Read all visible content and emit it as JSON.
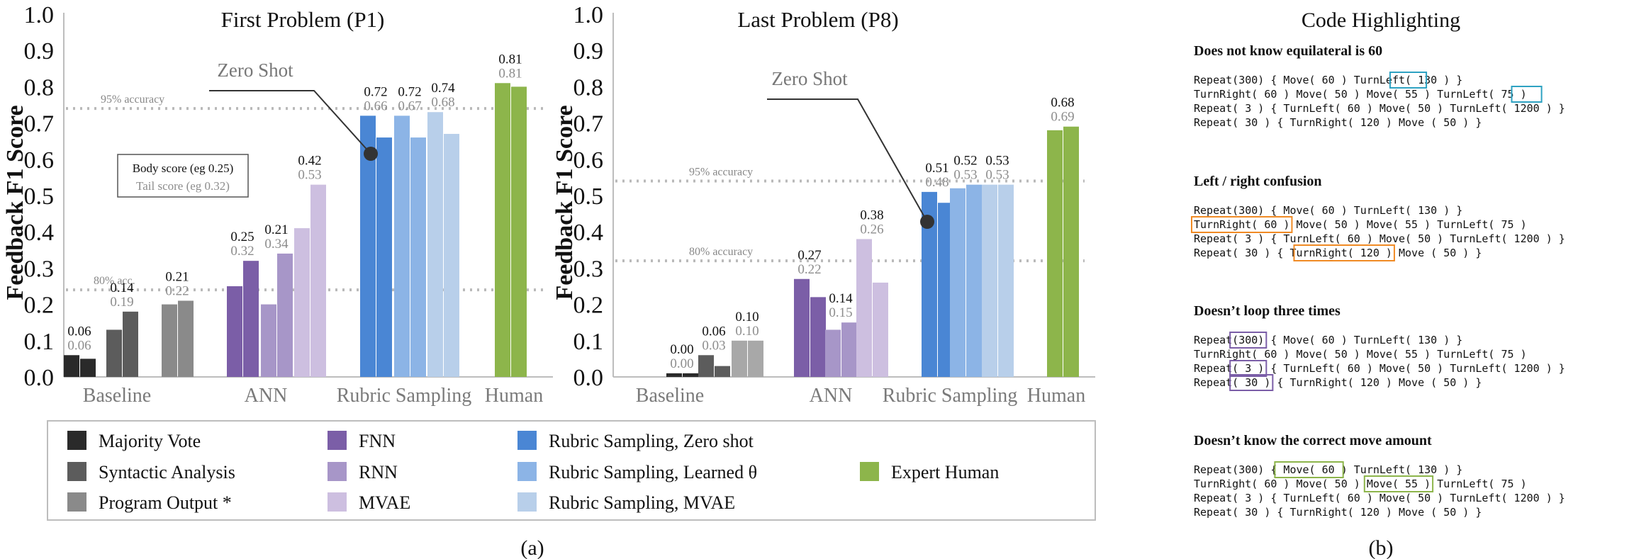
{
  "figure": {
    "caption_a": "(a)",
    "caption_b": "(b)",
    "ylabel": "Feedback F1 Score",
    "yticks": [
      "0.0",
      "0.1",
      "0.2",
      "0.3",
      "0.4",
      "0.5",
      "0.6",
      "0.7",
      "0.8",
      "0.9",
      "1.0"
    ],
    "groups": [
      "Baseline",
      "ANN",
      "Rubric Sampling",
      "Human"
    ],
    "annotation_zero_shot": "Zero Shot"
  },
  "colors": {
    "majority_vote": "#2a2a2a",
    "syntactic_analysis": "#5c5c5c",
    "program_output": "#8a8a8a",
    "fnn": "#7b5ea7",
    "rnn": "#a796c8",
    "mvae": "#cdbfe0",
    "rs_zero_shot": "#4a86d4",
    "rs_learned": "#8cb4e6",
    "rs_mvae": "#b8cfea",
    "expert_human": "#8db54b",
    "baseline_third_p8": "#a8a8a8"
  },
  "chart_data": [
    {
      "type": "bar",
      "title": "First Problem (P1)",
      "ylabel": "Feedback F1 Score",
      "ylim": [
        0,
        1.0
      ],
      "reference_lines": [
        {
          "label": "95% accuracy",
          "value": 0.74
        },
        {
          "label": "80% acc.",
          "value": 0.24
        }
      ],
      "inline_legend": {
        "body": "Body score (eg 0.25)",
        "tail": "Tail score (eg 0.32)"
      },
      "series": [
        {
          "name": "Majority Vote",
          "group": "Baseline",
          "body": 0.06,
          "tail": 0.05,
          "label_body": "0.06",
          "label_tail": "0.06"
        },
        {
          "name": "Syntactic Analysis",
          "group": "Baseline",
          "body": 0.13,
          "tail": 0.18,
          "label_body": "0.14",
          "label_tail": "0.19"
        },
        {
          "name": "Program Output *",
          "group": "Baseline",
          "body": 0.2,
          "tail": 0.21,
          "label_body": "0.21",
          "label_tail": "0.22"
        },
        {
          "name": "FNN",
          "group": "ANN",
          "body": 0.25,
          "tail": 0.32,
          "label_body": "0.25",
          "label_tail": "0.32"
        },
        {
          "name": "RNN",
          "group": "ANN",
          "body": 0.2,
          "tail": 0.34,
          "label_body": "0.21",
          "label_tail": "0.34"
        },
        {
          "name": "MVAE",
          "group": "ANN",
          "body": 0.41,
          "tail": 0.53,
          "label_body": "0.42",
          "label_tail": "0.53"
        },
        {
          "name": "Rubric Sampling, Zero shot",
          "group": "Rubric Sampling",
          "body": 0.72,
          "tail": 0.66,
          "label_body": "0.72",
          "label_tail": "0.66"
        },
        {
          "name": "Rubric Sampling, Learned θ",
          "group": "Rubric Sampling",
          "body": 0.72,
          "tail": 0.66,
          "label_body": "0.72",
          "label_tail": "0.67"
        },
        {
          "name": "Rubric Sampling, MVAE",
          "group": "Rubric Sampling",
          "body": 0.73,
          "tail": 0.67,
          "label_body": "0.74",
          "label_tail": "0.68"
        },
        {
          "name": "Expert Human",
          "group": "Human",
          "body": 0.81,
          "tail": 0.8,
          "label_body": "0.81",
          "label_tail": "0.81"
        }
      ]
    },
    {
      "type": "bar",
      "title": "Last Problem (P8)",
      "ylabel": "Feedback F1 Score",
      "ylim": [
        0,
        1.0
      ],
      "reference_lines": [
        {
          "label": "95% accuracy",
          "value": 0.54
        },
        {
          "label": "80% accuracy",
          "value": 0.32
        }
      ],
      "series": [
        {
          "name": "Majority Vote",
          "group": "Baseline",
          "body": 0.01,
          "tail": 0.01,
          "label_body": "0.00",
          "label_tail": "0.00"
        },
        {
          "name": "Syntactic Analysis",
          "group": "Baseline",
          "body": 0.06,
          "tail": 0.03,
          "label_body": "0.06",
          "label_tail": "0.03"
        },
        {
          "name": "Program Output *",
          "group": "Baseline",
          "body": 0.1,
          "tail": 0.1,
          "label_body": "0.10",
          "label_tail": "0.10"
        },
        {
          "name": "FNN",
          "group": "ANN",
          "body": 0.27,
          "tail": 0.22,
          "label_body": "0.27",
          "label_tail": "0.22"
        },
        {
          "name": "RNN",
          "group": "ANN",
          "body": 0.13,
          "tail": 0.15,
          "label_body": "0.14",
          "label_tail": "0.15"
        },
        {
          "name": "MVAE",
          "group": "ANN",
          "body": 0.38,
          "tail": 0.26,
          "label_body": "0.38",
          "label_tail": "0.26"
        },
        {
          "name": "Rubric Sampling, Zero shot",
          "group": "Rubric Sampling",
          "body": 0.51,
          "tail": 0.48,
          "label_body": "0.51",
          "label_tail": "0.48"
        },
        {
          "name": "Rubric Sampling, Learned θ",
          "group": "Rubric Sampling",
          "body": 0.52,
          "tail": 0.53,
          "label_body": "0.52",
          "label_tail": "0.53"
        },
        {
          "name": "Rubric Sampling, MVAE",
          "group": "Rubric Sampling",
          "body": 0.53,
          "tail": 0.53,
          "label_body": "0.53",
          "label_tail": "0.53"
        },
        {
          "name": "Expert Human",
          "group": "Human",
          "body": 0.68,
          "tail": 0.69,
          "label_body": "0.68",
          "label_tail": "0.69"
        }
      ]
    }
  ],
  "legend": {
    "items": [
      {
        "label": "Majority Vote",
        "color_key": "majority_vote"
      },
      {
        "label": "Syntactic Analysis",
        "color_key": "syntactic_analysis"
      },
      {
        "label": "Program Output *",
        "color_key": "program_output"
      },
      {
        "label": "FNN",
        "color_key": "fnn"
      },
      {
        "label": "RNN",
        "color_key": "rnn"
      },
      {
        "label": "MVAE",
        "color_key": "mvae"
      },
      {
        "label": "Rubric Sampling, Zero shot",
        "color_key": "rs_zero_shot"
      },
      {
        "label": "Rubric Sampling, Learned θ",
        "color_key": "rs_learned"
      },
      {
        "label": "Rubric Sampling, MVAE",
        "color_key": "rs_mvae"
      },
      {
        "label": "Expert Human",
        "color_key": "expert_human"
      }
    ]
  },
  "code": {
    "title": "Code Highlighting",
    "highlight_colors": [
      "#2ea2c2",
      "#f08a24",
      "#7b5ea7",
      "#8db54b"
    ],
    "sections": [
      {
        "heading": "Does not know equilateral is 60",
        "lines": [
          "Repeat(300) { Move( 60 ) TurnLeft( 130 ) }",
          "TurnRight( 60 ) Move( 50 ) Move( 55 ) TurnLeft( 75 )",
          "Repeat( 3 ) { TurnLeft( 60 ) Move( 50 ) TurnLeft( 1200 ) }",
          "Repeat( 30 ) { TurnRight( 120 ) Move ( 50 ) }"
        ]
      },
      {
        "heading": "Left / right confusion",
        "lines": [
          "Repeat(300) { Move( 60 ) TurnLeft( 130 ) }",
          "TurnRight( 60 ) Move( 50 ) Move( 55 ) TurnLeft( 75 )",
          "Repeat( 3 ) { TurnLeft( 60 ) Move( 50 ) TurnLeft( 1200 ) }",
          "Repeat( 30 ) { TurnRight( 120 ) Move ( 50 ) }"
        ]
      },
      {
        "heading": "Doesn’t loop three times",
        "lines": [
          "Repeat(300) { Move( 60 ) TurnLeft( 130 ) }",
          "TurnRight( 60 ) Move( 50 ) Move( 55 ) TurnLeft( 75 )",
          "Repeat( 3 ) { TurnLeft( 60 ) Move( 50 ) TurnLeft( 1200 ) }",
          "Repeat( 30 ) { TurnRight( 120 ) Move ( 50 ) }"
        ]
      },
      {
        "heading": "Doesn’t know the correct move amount",
        "lines": [
          "Repeat(300) { Move( 60 ) TurnLeft( 130 ) }",
          "TurnRight( 60 ) Move( 50 ) Move( 55 ) TurnLeft( 75 )",
          "Repeat( 3 ) { TurnLeft( 60 ) Move( 50 ) TurnLeft( 1200 ) }",
          "Repeat( 30 ) { TurnRight( 120 ) Move ( 50 ) }"
        ]
      }
    ]
  }
}
